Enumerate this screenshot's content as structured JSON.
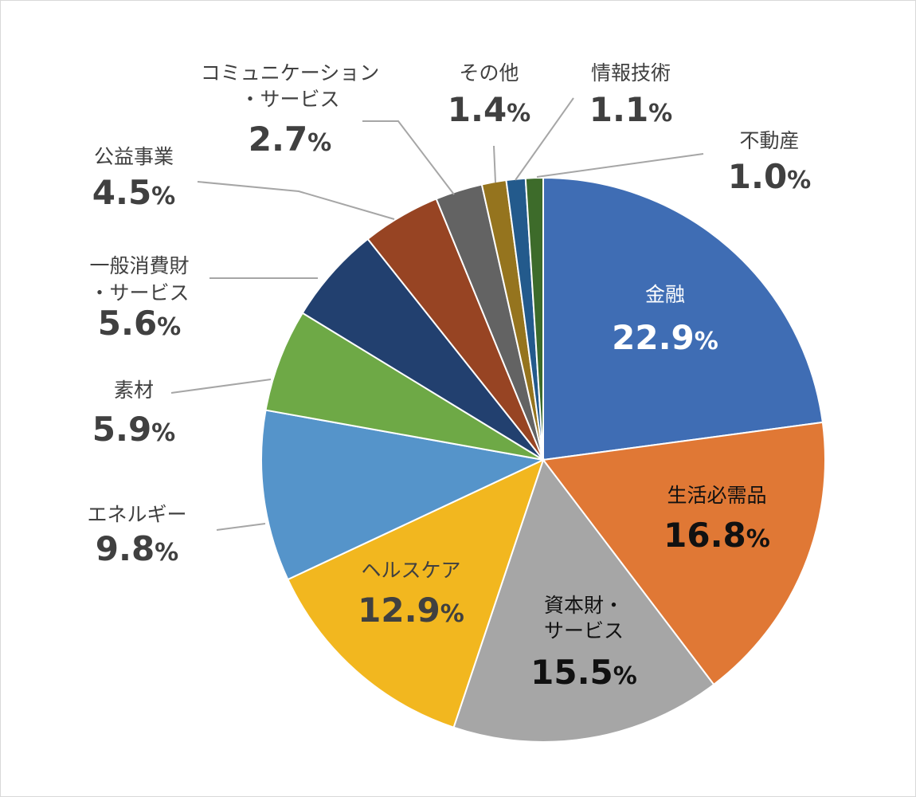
{
  "chart_data": {
    "type": "pie",
    "start_angle_deg": 0,
    "direction": "clockwise",
    "slices": [
      {
        "label": "金融",
        "label_lines": [
          "金融"
        ],
        "value": 22.9,
        "value_text": "22.9",
        "color": "#3f6db4",
        "label_placement": "inside",
        "label_color": "#ffffff"
      },
      {
        "label": "生活必需品",
        "label_lines": [
          "生活必需品"
        ],
        "value": 16.8,
        "value_text": "16.8",
        "color": "#e07835",
        "label_placement": "inside",
        "label_color": "#111111"
      },
      {
        "label": "資本財・サービス",
        "label_lines": [
          "資本財・",
          "サービス"
        ],
        "value": 15.5,
        "value_text": "15.5",
        "color": "#a6a6a6",
        "label_placement": "inside",
        "label_color": "#111111"
      },
      {
        "label": "ヘルスケア",
        "label_lines": [
          "ヘルスケア"
        ],
        "value": 12.9,
        "value_text": "12.9",
        "color": "#f2b71f",
        "label_placement": "inside",
        "label_color": "#404040"
      },
      {
        "label": "エネルギー",
        "label_lines": [
          "エネルギー"
        ],
        "value": 9.8,
        "value_text": "9.8",
        "color": "#5594ca",
        "label_placement": "outside",
        "label_color": "#404040"
      },
      {
        "label": "素材",
        "label_lines": [
          "素材"
        ],
        "value": 5.9,
        "value_text": "5.9",
        "color": "#6ea946",
        "label_placement": "outside",
        "label_color": "#404040"
      },
      {
        "label": "一般消費財・サービス",
        "label_lines": [
          "一般消費財",
          "・サービス"
        ],
        "value": 5.6,
        "value_text": "5.6",
        "color": "#22406f",
        "label_placement": "outside",
        "label_color": "#404040"
      },
      {
        "label": "公益事業",
        "label_lines": [
          "公益事業"
        ],
        "value": 4.5,
        "value_text": "4.5",
        "color": "#974423",
        "label_placement": "outside",
        "label_color": "#404040"
      },
      {
        "label": "コミュニケーション・サービス",
        "label_lines": [
          "コミュニケーション",
          "・サービス"
        ],
        "value": 2.7,
        "value_text": "2.7",
        "color": "#636363",
        "label_placement": "outside",
        "label_color": "#404040"
      },
      {
        "label": "その他",
        "label_lines": [
          "その他"
        ],
        "value": 1.4,
        "value_text": "1.4",
        "color": "#95741e",
        "label_placement": "outside",
        "label_color": "#404040"
      },
      {
        "label": "情報技術",
        "label_lines": [
          "情報技術"
        ],
        "value": 1.1,
        "value_text": "1.1",
        "color": "#235a8c",
        "label_placement": "outside",
        "label_color": "#404040"
      },
      {
        "label": "不動産",
        "label_lines": [
          "不動産"
        ],
        "value": 1.0,
        "value_text": "1.0",
        "color": "#3d6b2a",
        "label_placement": "outside",
        "label_color": "#404040"
      }
    ],
    "value_suffix": "%",
    "legend": "none"
  }
}
